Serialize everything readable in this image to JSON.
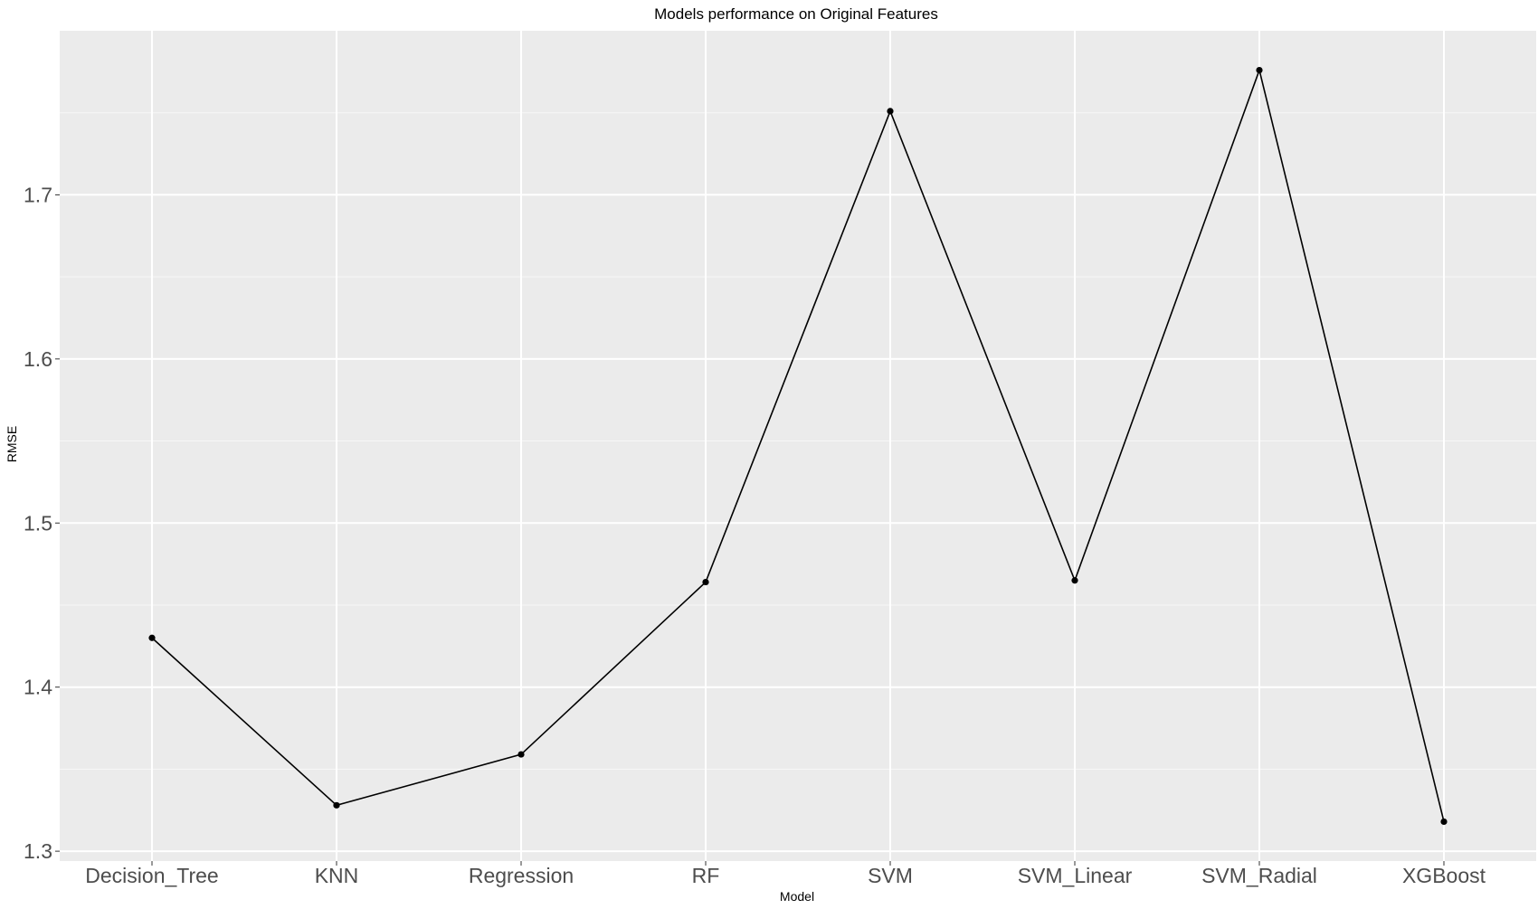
{
  "chart_data": {
    "type": "line",
    "title": "Models performance on Original Features",
    "xlabel": "Model",
    "ylabel": "RMSE",
    "categories": [
      "Decision_Tree",
      "KNN",
      "Regression",
      "RF",
      "SVM",
      "SVM_Linear",
      "SVM_Radial",
      "XGBoost"
    ],
    "series": [
      {
        "values": [
          1.43,
          1.328,
          1.359,
          1.464,
          1.751,
          1.465,
          1.776,
          1.318
        ]
      }
    ],
    "ylim": [
      1.294,
      1.8
    ],
    "yticks": [
      1.3,
      1.4,
      1.5,
      1.6,
      1.7
    ],
    "ytick_labels": [
      "1.3",
      "1.4",
      "1.5",
      "1.6",
      "1.7"
    ],
    "grid": true,
    "legend": "none",
    "colors": {
      "panel_background": "#ebebeb",
      "grid_major": "#ffffff",
      "line": "#000000",
      "point": "#000000",
      "tick_label": "#4d4d4d",
      "title": "#000000"
    }
  }
}
